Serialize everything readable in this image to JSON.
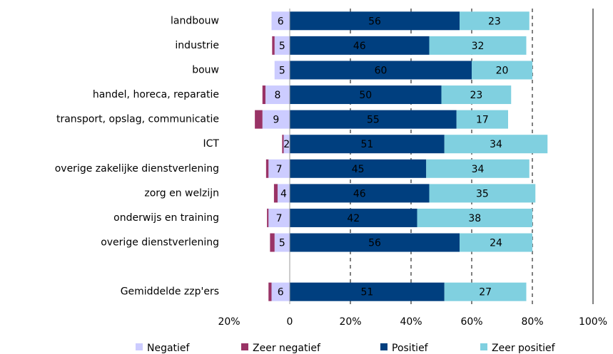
{
  "chart_data": {
    "type": "diverging_stacked_bar",
    "categories": [
      "landbouw",
      "industrie",
      "bouw",
      "handel, horeca, reparatie",
      "transport, opslag, communicatie",
      "ICT",
      "overige zakelijke dienstverlening",
      "zorg en welzijn",
      "onderwijs en training",
      "overige dienstverlening",
      null,
      "Gemiddelde zzp'ers"
    ],
    "series": [
      {
        "name": "Negatief",
        "color": "#ccccff",
        "values": [
          -6,
          -5,
          -5,
          -8,
          -9,
          -2,
          -7,
          -4,
          -7,
          -5,
          null,
          -6
        ],
        "value_labels": [
          "6",
          "5",
          "5",
          "8",
          "9",
          "2",
          "7",
          "4",
          "7",
          "5",
          null,
          "6"
        ]
      },
      {
        "name": "Zeer negatief",
        "color": "#993366",
        "values": [
          0,
          -0.8,
          0,
          -1,
          -2.5,
          -0.5,
          -0.8,
          -1.2,
          -0.5,
          -1.5,
          null,
          -1
        ]
      },
      {
        "name": "Positief",
        "color": "#003f7f",
        "values": [
          56,
          46,
          60,
          50,
          55,
          51,
          45,
          46,
          42,
          56,
          null,
          51
        ]
      },
      {
        "name": "Zeer positief",
        "color": "#80d0e0",
        "values": [
          23,
          32,
          20,
          23,
          17,
          34,
          34,
          35,
          38,
          24,
          null,
          27
        ]
      }
    ],
    "xlim": [
      -20,
      100
    ],
    "xticks": [
      {
        "value": -20,
        "label": "20%"
      },
      0,
      {
        "value": 20,
        "label": "20%"
      },
      {
        "value": 40,
        "label": "40%"
      },
      {
        "value": 60,
        "label": "60%"
      },
      {
        "value": 80,
        "label": "80%"
      },
      {
        "value": 100,
        "label": "100%"
      }
    ],
    "grid": true,
    "legend": "bottom"
  }
}
